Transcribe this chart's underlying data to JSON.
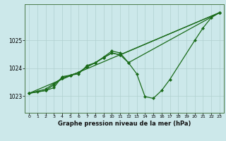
{
  "background_color": "#cce8ea",
  "plot_bg_color": "#cce8ea",
  "line_color": "#1a6b1a",
  "grid_color": "#b0d0d0",
  "title": "Graphe pression niveau de la mer (hPa)",
  "xlim": [
    -0.5,
    23.5
  ],
  "ylim": [
    1022.4,
    1026.3
  ],
  "yticks": [
    1023,
    1024,
    1025
  ],
  "xticks": [
    0,
    1,
    2,
    3,
    4,
    5,
    6,
    7,
    8,
    9,
    10,
    11,
    12,
    13,
    14,
    15,
    16,
    17,
    18,
    19,
    20,
    21,
    22,
    23
  ],
  "line1_x": [
    0,
    1,
    2,
    3,
    4,
    5,
    6,
    7,
    8,
    9,
    10,
    11,
    12,
    13,
    14,
    15,
    16,
    17,
    20,
    21,
    22,
    23
  ],
  "line1_y": [
    1023.1,
    1023.15,
    1023.2,
    1023.3,
    1023.7,
    1023.75,
    1023.8,
    1024.1,
    1024.2,
    1024.4,
    1024.62,
    1024.55,
    1024.2,
    1023.8,
    1022.98,
    1022.92,
    1023.2,
    1023.6,
    1025.0,
    1025.45,
    1025.82,
    1026.0
  ],
  "line2_x": [
    0,
    2,
    3,
    4,
    5,
    6,
    7,
    8,
    9,
    10,
    11,
    23
  ],
  "line2_y": [
    1023.1,
    1023.2,
    1023.4,
    1023.65,
    1023.75,
    1023.85,
    1024.05,
    1024.2,
    1024.38,
    1024.55,
    1024.48,
    1026.0
  ],
  "line3_x": [
    0,
    23
  ],
  "line3_y": [
    1023.1,
    1026.0
  ],
  "line4_x": [
    0,
    2,
    3,
    4,
    5,
    6,
    7,
    8,
    9,
    10,
    11,
    12,
    23
  ],
  "line4_y": [
    1023.1,
    1023.25,
    1023.45,
    1023.65,
    1023.75,
    1023.85,
    1024.05,
    1024.2,
    1024.38,
    1024.55,
    1024.48,
    1024.2,
    1026.0
  ]
}
